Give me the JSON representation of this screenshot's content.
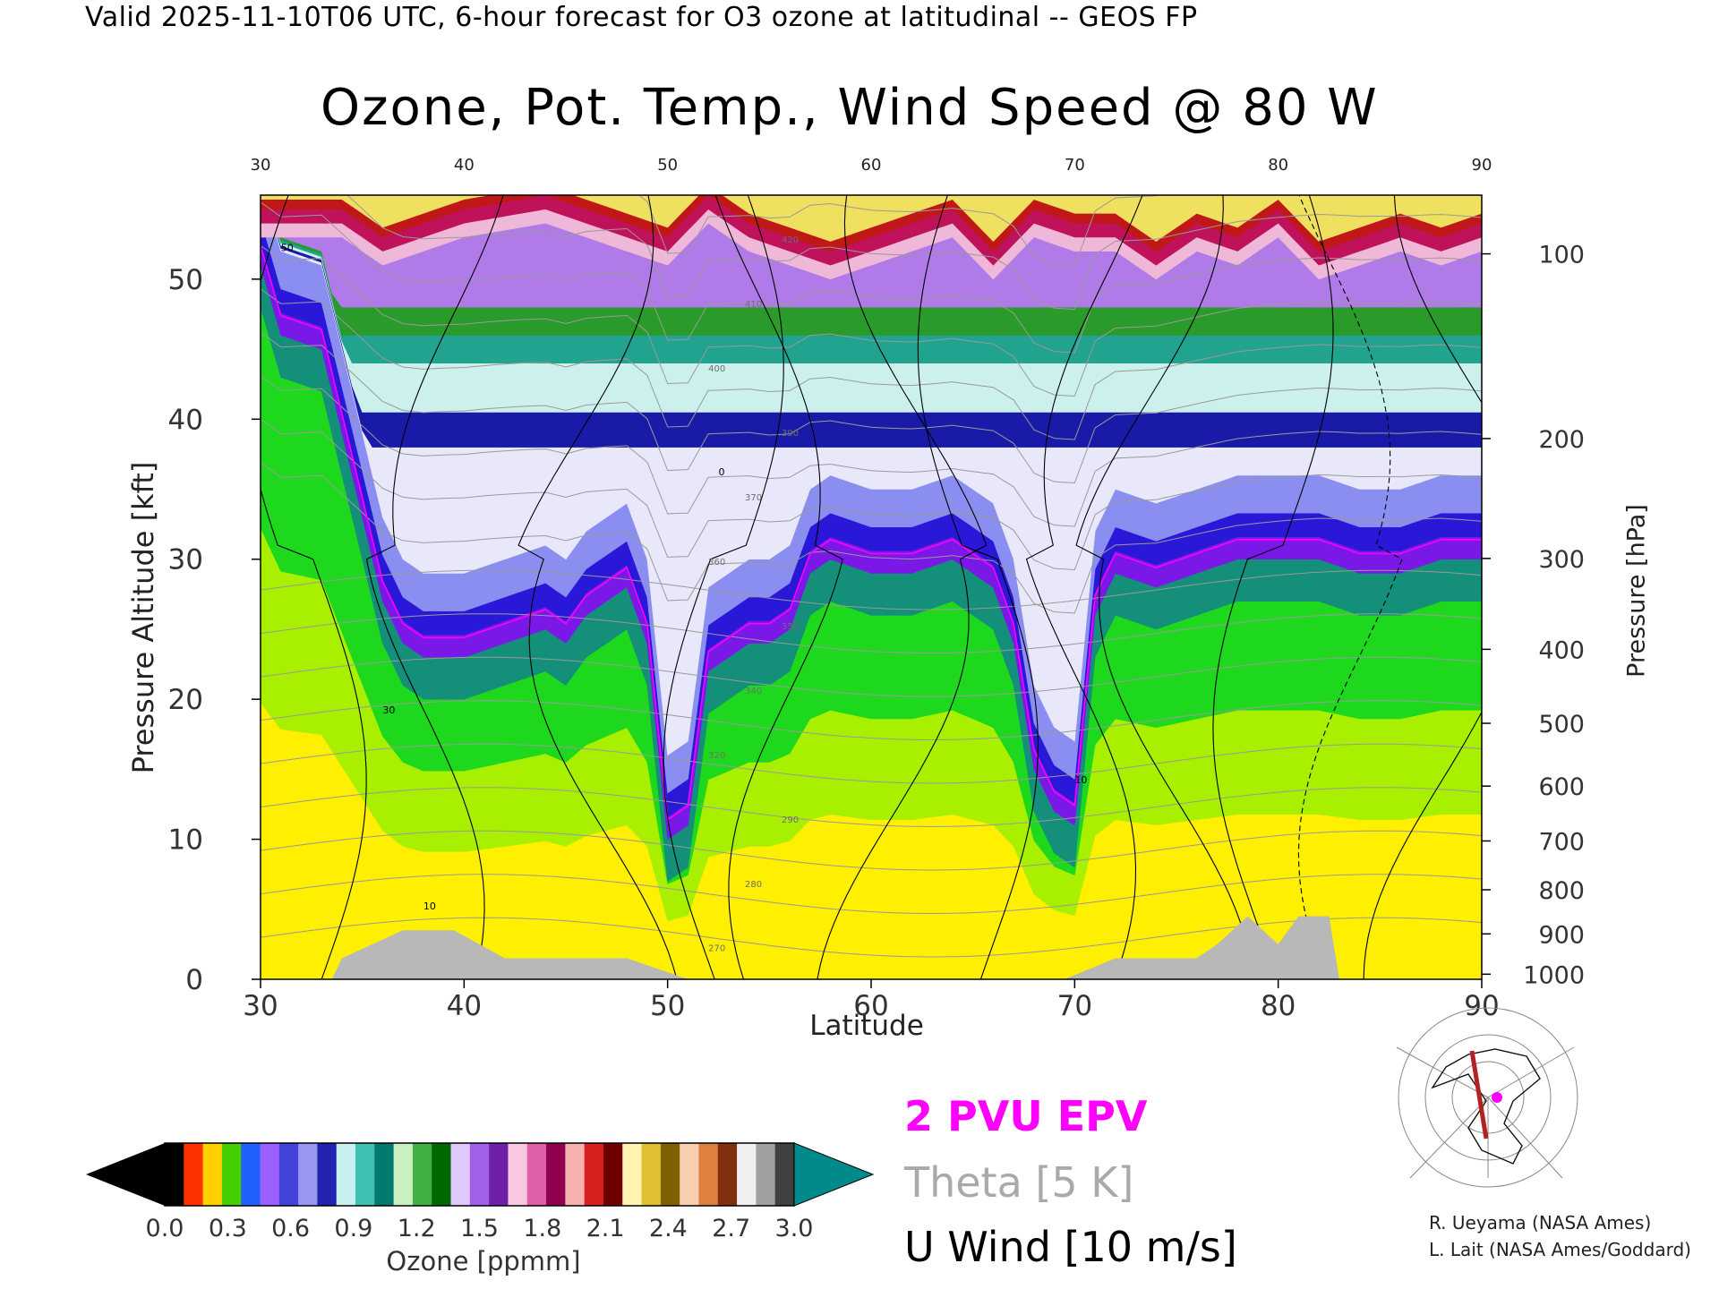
{
  "header": {
    "valid_line": "Valid 2025-11-10T06 UTC, 6-hour forecast for O3 ozone at latitudinal -- GEOS FP",
    "title": "Ozone, Pot. Temp., Wind Speed @ 80 W"
  },
  "axes": {
    "x_label": "Latitude",
    "y_left_label": "Pressure Altitude [kft]",
    "y_right_label": "Pressure [hPa]"
  },
  "legend": {
    "epv": "2 PVU EPV",
    "theta": "Theta [5 K]",
    "wind": "U Wind [10 m/s]",
    "epv_color": "#ff00ff",
    "theta_color": "#a9a9a9",
    "wind_color": "#000000"
  },
  "colorbar": {
    "title": "Ozone [ppmm]",
    "ticks": [
      "0.0",
      "0.3",
      "0.6",
      "0.9",
      "1.2",
      "1.5",
      "1.8",
      "2.1",
      "2.4",
      "2.7",
      "3.0"
    ],
    "under_color": "#000000",
    "over_color": "#008b8b"
  },
  "credits": {
    "line1": "R. Ueyama (NASA Ames)",
    "line2": "L. Lait (NASA Ames/Goddard)"
  },
  "inset_map": {
    "marker_color": "#ff00ff",
    "track_color": "#b22222"
  },
  "chart_data": {
    "type": "heatmap",
    "title": "Ozone, Pot. Temp., Wind Speed @ 80 W",
    "xlabel": "Latitude",
    "ylabel": "Pressure Altitude [kft]",
    "xlim": [
      30,
      90
    ],
    "ylim": [
      0,
      56
    ],
    "x_ticks": [
      30,
      40,
      50,
      60,
      70,
      80,
      90
    ],
    "y_ticks": [
      0,
      10,
      20,
      30,
      40,
      50
    ],
    "pressure_ticks_hPa": [
      100,
      200,
      300,
      400,
      500,
      600,
      700,
      800,
      900,
      1000
    ],
    "tropopause_kft": {
      "latitude": [
        30,
        31,
        33,
        34,
        35,
        36,
        37,
        38,
        40,
        42,
        44,
        45,
        46,
        47,
        48,
        49,
        50,
        51,
        52,
        53,
        54,
        55,
        56,
        57,
        58,
        60,
        62,
        64,
        66,
        67,
        68,
        69,
        70,
        71,
        72,
        74,
        76,
        78,
        80,
        82,
        84,
        86,
        88,
        90
      ],
      "altitude": [
        52,
        47,
        46,
        40,
        34,
        28,
        25,
        24,
        24,
        25,
        26,
        25,
        27,
        28,
        29,
        25,
        11,
        12,
        23,
        24,
        25,
        25,
        26,
        30,
        31,
        30,
        30,
        31,
        29,
        25,
        16,
        13,
        12,
        27,
        30,
        29,
        30,
        31,
        31,
        31,
        30,
        30,
        31,
        31
      ]
    },
    "high_ozone_top_kft": {
      "latitude": [
        30,
        34,
        36,
        38,
        40,
        44,
        48,
        50,
        52,
        54,
        56,
        58,
        60,
        62,
        64,
        66,
        68,
        70,
        72,
        74,
        76,
        78,
        80,
        82,
        84,
        86,
        88,
        90
      ],
      "altitude": [
        55,
        55,
        53,
        54,
        55,
        56,
        54,
        53,
        56,
        54,
        53,
        52,
        53,
        54,
        55,
        52,
        55,
        54,
        54,
        52,
        54,
        53,
        55,
        52,
        53,
        54,
        53,
        54
      ]
    },
    "terrain_kft": {
      "latitude": [
        30,
        33.5,
        34,
        37,
        39.5,
        42,
        46,
        48,
        51,
        69.5,
        72,
        76,
        77,
        78.5,
        80,
        81,
        82.5,
        83,
        90
      ],
      "altitude": [
        0,
        0,
        1.5,
        3.5,
        3.5,
        1.5,
        1.5,
        1.5,
        0,
        0,
        1.5,
        1.5,
        2.5,
        4.5,
        2.5,
        4.5,
        4.5,
        0,
        0
      ]
    },
    "contour_labels": {
      "u_wind_m_s": [
        "30",
        "10",
        "0",
        "50"
      ],
      "theta_K": [
        "270",
        "280",
        "290",
        "320",
        "340",
        "350",
        "360",
        "370",
        "390",
        "400",
        "410",
        "420"
      ]
    },
    "series": [
      {
        "name": "2 PVU EPV"
      },
      {
        "name": "Theta [5 K]"
      },
      {
        "name": "U Wind [10 m/s]"
      }
    ],
    "colorbar_ticks": [
      0.0,
      0.3,
      0.6,
      0.9,
      1.2,
      1.5,
      1.8,
      2.1,
      2.4,
      2.7,
      3.0
    ],
    "colorbar_label": "Ozone [ppmm]"
  }
}
